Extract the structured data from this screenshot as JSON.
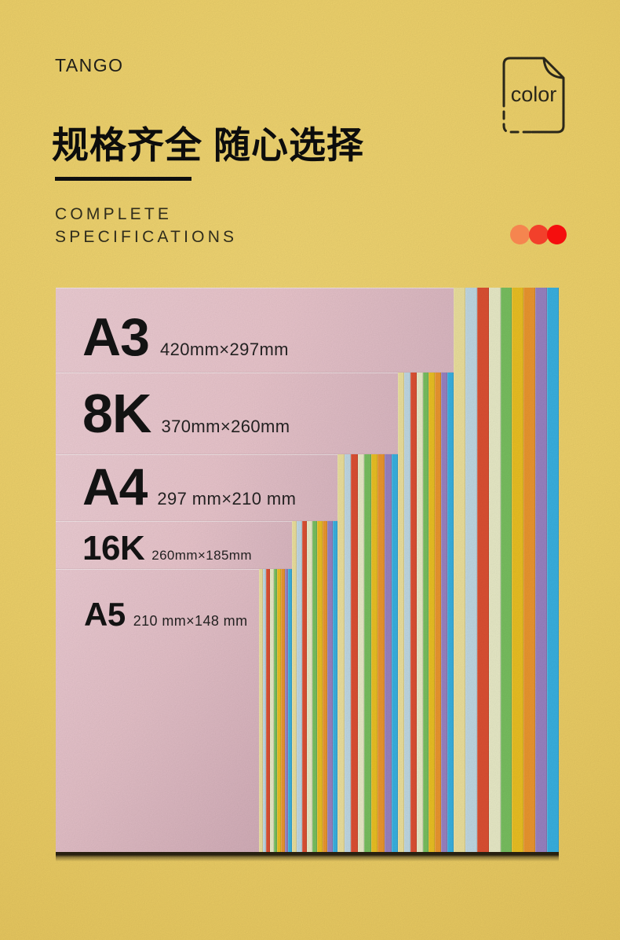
{
  "brand": "TANGO",
  "header": {
    "title": "规格齐全 随心选择",
    "subtitle_line1": "COMPLETE",
    "subtitle_line2": "SPECIFICATIONS",
    "paper_icon_label": "color"
  },
  "accent_dots": [
    "#F5854F",
    "#F2402B",
    "#F50E0E"
  ],
  "palette": {
    "background": "#F4D66C",
    "paper_pink": "#EFCAD1",
    "paper_pink_dark": "#D8B2BD",
    "ink": "#111111"
  },
  "stripe_colors": [
    "#F1E5A0",
    "#C4DDE9",
    "#E25234",
    "#EEF0CC",
    "#7BC462",
    "#EFC424",
    "#F09A30",
    "#9C85C6",
    "#3AB5E6"
  ],
  "sizes": [
    {
      "label": "A3",
      "dimensions": "420mm×297mm"
    },
    {
      "label": "8K",
      "dimensions": "370mm×260mm"
    },
    {
      "label": "A4",
      "dimensions": "297 mm×210 mm"
    },
    {
      "label": "16K",
      "dimensions": "260mm×185mm"
    },
    {
      "label": "A5",
      "dimensions": "210 mm×148 mm"
    }
  ]
}
